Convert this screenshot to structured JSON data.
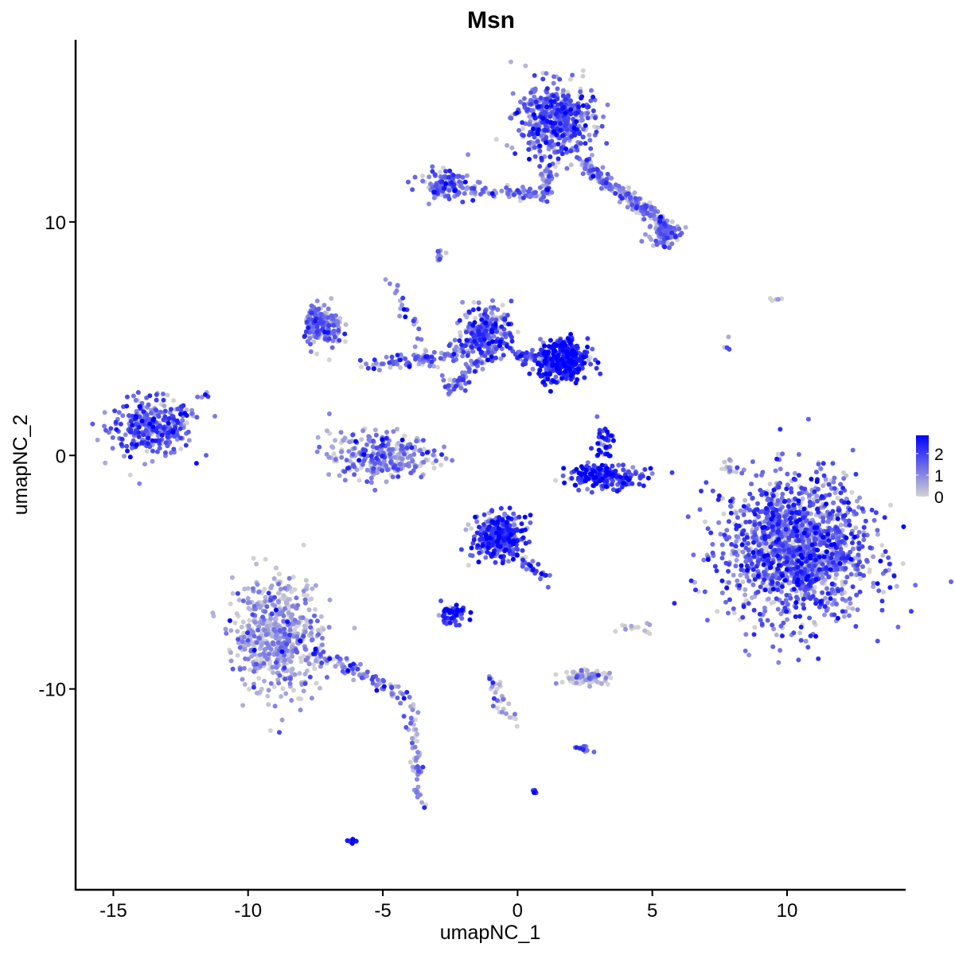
{
  "chart_data": {
    "type": "scatter",
    "title": "Msn",
    "xlabel": "umapNC_1",
    "ylabel": "umapNC_2",
    "xlim": [
      -16.4,
      14.4
    ],
    "ylim": [
      -18.6,
      17.8
    ],
    "xticks": [
      -15,
      -10,
      -5,
      0,
      5,
      10
    ],
    "yticks": [
      -10,
      0,
      10
    ],
    "grid": false,
    "legend": "right",
    "colorbar": {
      "min": 0,
      "max": 2.85,
      "ticks": [
        0,
        1,
        2
      ],
      "low_color": "#D3D3D3",
      "high_color": "#0000FF"
    },
    "note_points": "approximate cell clusters (center, spread in UMAP units, cell count, mean expression)",
    "clusters": [
      {
        "center": [
          -13.6,
          1.2
        ],
        "spread": [
          0.75,
          0.6
        ],
        "n": 320,
        "expr": 1.6
      },
      {
        "center": [
          10.3,
          -4.0
        ],
        "spread": [
          1.35,
          1.55
        ],
        "n": 1500,
        "expr": 1.5
      },
      {
        "center": [
          -8.9,
          -7.8
        ],
        "spread": [
          0.8,
          1.2
        ],
        "n": 600,
        "expr": 0.6
      },
      {
        "center": [
          1.4,
          14.3
        ],
        "spread": [
          0.7,
          0.8
        ],
        "n": 500,
        "expr": 1.5
      },
      {
        "center": [
          -2.7,
          11.6
        ],
        "spread": [
          0.45,
          0.3
        ],
        "n": 120,
        "expr": 1.5
      },
      {
        "center": [
          -1.1,
          5.3
        ],
        "spread": [
          0.45,
          0.55
        ],
        "n": 250,
        "expr": 1.6
      },
      {
        "center": [
          1.7,
          4.1
        ],
        "spread": [
          0.45,
          0.45
        ],
        "n": 320,
        "expr": 2.3
      },
      {
        "center": [
          -5.1,
          0.0
        ],
        "spread": [
          0.95,
          0.5
        ],
        "n": 300,
        "expr": 0.9
      },
      {
        "center": [
          -7.2,
          5.5
        ],
        "spread": [
          0.35,
          0.45
        ],
        "n": 180,
        "expr": 1.1
      },
      {
        "center": [
          -0.7,
          -3.5
        ],
        "spread": [
          0.5,
          0.45
        ],
        "n": 300,
        "expr": 1.9
      },
      {
        "center": [
          3.2,
          -0.9
        ],
        "spread": [
          0.7,
          0.25
        ],
        "n": 200,
        "expr": 2.2
      },
      {
        "center": [
          3.2,
          0.6
        ],
        "spread": [
          0.2,
          0.35
        ],
        "n": 40,
        "expr": 2.2
      },
      {
        "center": [
          -2.4,
          -6.8
        ],
        "spread": [
          0.3,
          0.2
        ],
        "n": 60,
        "expr": 2.0
      },
      {
        "center": [
          2.5,
          -9.5
        ],
        "spread": [
          0.45,
          0.15
        ],
        "n": 80,
        "expr": 0.3
      },
      {
        "center": [
          5.5,
          9.5
        ],
        "spread": [
          0.35,
          0.3
        ],
        "n": 80,
        "expr": 1.2
      },
      {
        "center": [
          -2.9,
          8.5
        ],
        "spread": [
          0.1,
          0.1
        ],
        "n": 12,
        "expr": 1.2
      },
      {
        "center": [
          -6.1,
          -16.5
        ],
        "spread": [
          0.08,
          0.05
        ],
        "n": 10,
        "expr": 2.6
      },
      {
        "center": [
          0.6,
          -14.4
        ],
        "spread": [
          0.06,
          0.04
        ],
        "n": 6,
        "expr": 2.4
      },
      {
        "center": [
          2.4,
          -12.6
        ],
        "spread": [
          0.2,
          0.1
        ],
        "n": 15,
        "expr": 1.4
      },
      {
        "center": [
          9.6,
          6.7
        ],
        "spread": [
          0.15,
          0.05
        ],
        "n": 5,
        "expr": 0.8
      }
    ],
    "trails": [
      {
        "from": [
          -7.5,
          -8.4
        ],
        "to": [
          -4.0,
          -10.4
        ],
        "n": 90,
        "expr": 1.2
      },
      {
        "from": [
          -4.0,
          -10.5
        ],
        "to": [
          -3.6,
          -15.3
        ],
        "n": 60,
        "expr": 0.9
      },
      {
        "from": [
          2.4,
          12.5
        ],
        "to": [
          5.8,
          9.6
        ],
        "n": 220,
        "expr": 1.0
      },
      {
        "from": [
          -2.2,
          11.4
        ],
        "to": [
          1.2,
          11.1
        ],
        "n": 70,
        "expr": 1.3
      },
      {
        "from": [
          1.2,
          12.8
        ],
        "to": [
          1.0,
          11.0
        ],
        "n": 40,
        "expr": 1.2
      },
      {
        "from": [
          -5.8,
          3.8
        ],
        "to": [
          -1.8,
          4.5
        ],
        "n": 90,
        "expr": 1.3
      },
      {
        "from": [
          -4.7,
          7.4
        ],
        "to": [
          -2.5,
          2.5
        ],
        "n": 40,
        "expr": 1.2
      },
      {
        "from": [
          0.0,
          4.3
        ],
        "to": [
          1.2,
          4.0
        ],
        "n": 60,
        "expr": 1.6
      },
      {
        "from": [
          -2.5,
          2.8
        ],
        "to": [
          -1.3,
          4.2
        ],
        "n": 50,
        "expr": 1.4
      },
      {
        "from": [
          -0.3,
          -3.8
        ],
        "to": [
          1.1,
          -5.5
        ],
        "n": 40,
        "expr": 1.6
      },
      {
        "from": [
          -1.1,
          -9.1
        ],
        "to": [
          -0.2,
          -11.6
        ],
        "n": 30,
        "expr": 0.6
      },
      {
        "from": [
          8.0,
          -0.8
        ],
        "to": [
          7.8,
          -0.2
        ],
        "n": 12,
        "expr": 0.1
      },
      {
        "from": [
          3.2,
          -7.6
        ],
        "to": [
          5.1,
          -7.4
        ],
        "n": 14,
        "expr": 0.1
      },
      {
        "from": [
          -12.4,
          1.4
        ],
        "to": [
          -11.6,
          2.8
        ],
        "n": 12,
        "expr": 1.2
      },
      {
        "from": [
          7.6,
          4.9
        ],
        "to": [
          7.9,
          4.5
        ],
        "n": 4,
        "expr": 1.5
      }
    ]
  }
}
